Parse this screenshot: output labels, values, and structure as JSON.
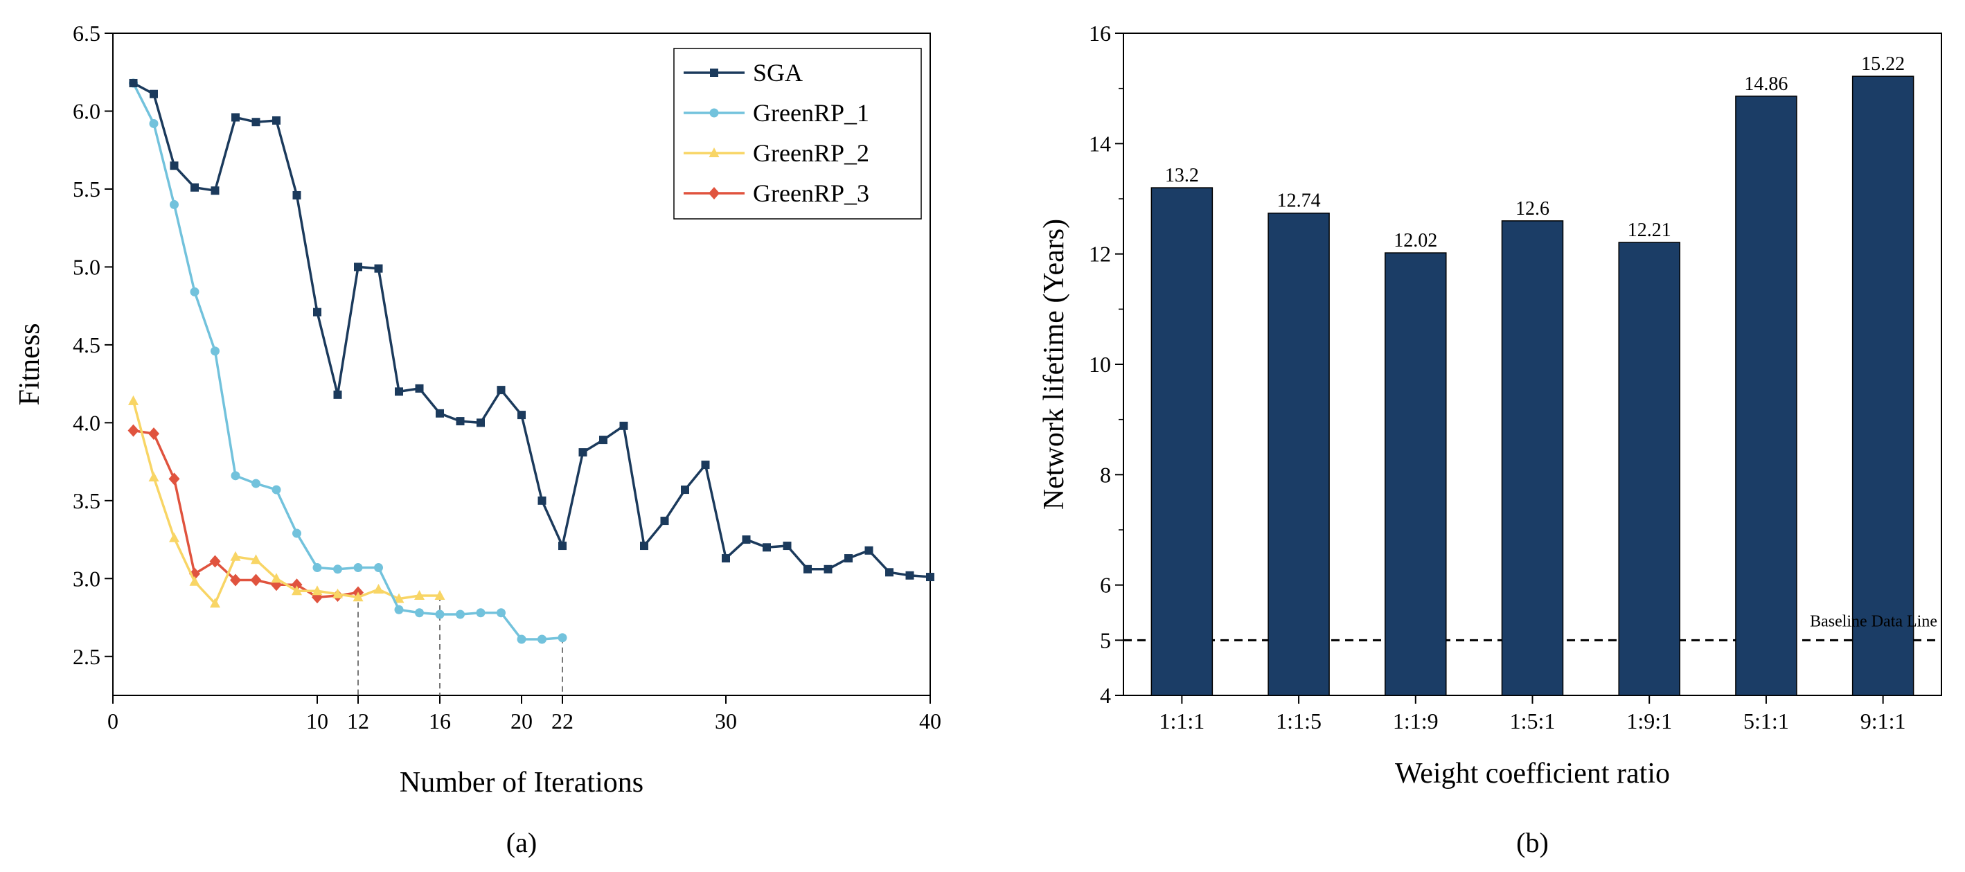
{
  "chart_data": [
    {
      "type": "line",
      "panel_label": "(a)",
      "xlabel": "Number of Iterations",
      "ylabel": "Fitness",
      "xlim": [
        0,
        40
      ],
      "ylim": [
        2.25,
        6.5
      ],
      "x_ticks": [
        {
          "value": 0,
          "label": "0"
        },
        {
          "value": 10,
          "label": "10"
        },
        {
          "value": 12,
          "label": "12"
        },
        {
          "value": 16,
          "label": "16"
        },
        {
          "value": 20,
          "label": "20"
        },
        {
          "value": 22,
          "label": "22"
        },
        {
          "value": 30,
          "label": "30"
        },
        {
          "value": 40,
          "label": "40"
        }
      ],
      "y_ticks": [
        {
          "value": 2.5,
          "label": "2.5"
        },
        {
          "value": 3.0,
          "label": "3.0"
        },
        {
          "value": 3.5,
          "label": "3.5"
        },
        {
          "value": 4.0,
          "label": "4.0"
        },
        {
          "value": 4.5,
          "label": "4.5"
        },
        {
          "value": 5.0,
          "label": "5.0"
        },
        {
          "value": 5.5,
          "label": "5.5"
        },
        {
          "value": 6.0,
          "label": "6.0"
        },
        {
          "value": 6.5,
          "label": "6.5"
        }
      ],
      "reference_lines_x": [
        12,
        16,
        22
      ],
      "legend_position": "top-right",
      "series": [
        {
          "name": "SGA",
          "color": "#1b3a5c",
          "marker": "square",
          "x": [
            1,
            2,
            3,
            4,
            5,
            6,
            7,
            8,
            9,
            10,
            11,
            12,
            13,
            14,
            15,
            16,
            17,
            18,
            19,
            20,
            21,
            22,
            23,
            24,
            25,
            26,
            27,
            28,
            29,
            30,
            31,
            32,
            33,
            34,
            35,
            36,
            37,
            38,
            39,
            40
          ],
          "values": [
            6.18,
            6.11,
            5.65,
            5.51,
            5.49,
            5.96,
            5.93,
            5.94,
            5.46,
            4.71,
            4.18,
            5.0,
            4.99,
            4.2,
            4.22,
            4.06,
            4.01,
            4.0,
            4.21,
            4.05,
            3.5,
            3.21,
            3.81,
            3.89,
            3.98,
            3.21,
            3.37,
            3.57,
            3.73,
            3.13,
            3.25,
            3.2,
            3.21,
            3.06,
            3.06,
            3.13,
            3.18,
            3.04,
            3.02,
            3.01
          ]
        },
        {
          "name": "GreenRP_1",
          "color": "#72c2dc",
          "marker": "circle",
          "x": [
            1,
            2,
            3,
            4,
            5,
            6,
            7,
            8,
            9,
            10,
            11,
            12,
            13,
            14,
            15,
            16,
            17,
            18,
            19,
            20,
            21,
            22
          ],
          "values": [
            6.18,
            5.92,
            5.4,
            4.84,
            4.46,
            3.66,
            3.61,
            3.57,
            3.29,
            3.07,
            3.06,
            3.07,
            3.07,
            2.8,
            2.78,
            2.77,
            2.77,
            2.78,
            2.78,
            2.61,
            2.61,
            2.62
          ]
        },
        {
          "name": "GreenRP_2",
          "color": "#f8d565",
          "marker": "triangle",
          "x": [
            1,
            2,
            3,
            4,
            5,
            6,
            7,
            8,
            9,
            10,
            11,
            12,
            13,
            14,
            15,
            16
          ],
          "values": [
            4.14,
            3.65,
            3.26,
            2.98,
            2.84,
            3.14,
            3.12,
            3.0,
            2.92,
            2.92,
            2.9,
            2.88,
            2.93,
            2.87,
            2.89,
            2.89
          ]
        },
        {
          "name": "GreenRP_3",
          "color": "#e0533e",
          "marker": "diamond",
          "x": [
            1,
            2,
            3,
            4,
            5,
            6,
            7,
            8,
            9,
            10,
            11,
            12
          ],
          "values": [
            3.95,
            3.93,
            3.64,
            3.03,
            3.11,
            2.99,
            2.99,
            2.96,
            2.96,
            2.88,
            2.89,
            2.91
          ]
        }
      ]
    },
    {
      "type": "bar",
      "panel_label": "(b)",
      "xlabel": "Weight coefficient ratio",
      "ylabel": "Network lifetime (Years)",
      "ylim": [
        4,
        16
      ],
      "y_ticks": [
        {
          "value": 4,
          "label": "4"
        },
        {
          "value": 5,
          "label": "5"
        },
        {
          "value": 6,
          "label": "6"
        },
        {
          "value": 8,
          "label": "8"
        },
        {
          "value": 10,
          "label": "10"
        },
        {
          "value": 12,
          "label": "12"
        },
        {
          "value": 14,
          "label": "14"
        },
        {
          "value": 16,
          "label": "16"
        }
      ],
      "categories": [
        "1:1:1",
        "1:1:5",
        "1:1:9",
        "1:5:1",
        "1:9:1",
        "5:1:1",
        "9:1:1"
      ],
      "values": [
        13.2,
        12.74,
        12.02,
        12.6,
        12.21,
        14.86,
        15.22
      ],
      "value_labels": [
        "13.2",
        "12.74",
        "12.02",
        "12.6",
        "12.21",
        "14.86",
        "15.22"
      ],
      "bar_color": "#1b3d66",
      "baseline": {
        "value": 5,
        "label": "Baseline Data Line"
      }
    }
  ]
}
